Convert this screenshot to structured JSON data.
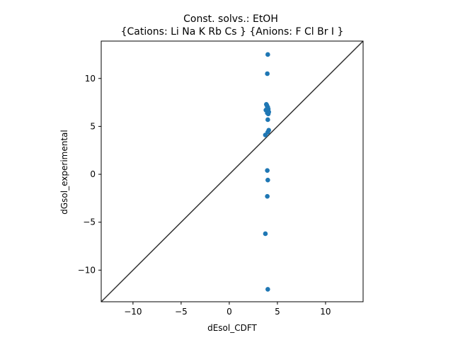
{
  "chart_data": {
    "type": "scatter",
    "title": "Const. solvs.: EtOH",
    "subtitle": "{Cations: Li Na K Rb Cs } {Anions: F Cl Br I }",
    "xlabel": "dEsol_CDFT",
    "ylabel": "dGsol_experimental",
    "xlim": [
      -13.3,
      13.9
    ],
    "ylim": [
      -13.3,
      13.9
    ],
    "xticks": [
      -10,
      -5,
      0,
      5,
      10
    ],
    "yticks": [
      -10,
      -5,
      0,
      5,
      10
    ],
    "grid": false,
    "legend": "none",
    "reference_line": "y = x",
    "marker_color": "#1f77b4",
    "line_color": "#333333",
    "series": [
      {
        "x": [
          4.0,
          3.95,
          3.85,
          3.9,
          4.0,
          3.95,
          4.05,
          3.8,
          4.1,
          3.95,
          4.05,
          4.0,
          3.75,
          4.1,
          4.0,
          3.95,
          4.0,
          3.95,
          3.75,
          4.0
        ],
        "y": [
          12.5,
          10.5,
          7.3,
          7.2,
          7.0,
          6.9,
          6.8,
          6.7,
          6.5,
          6.4,
          6.3,
          5.7,
          4.1,
          4.6,
          4.4,
          0.4,
          -0.6,
          -2.3,
          -6.2,
          -12.0
        ]
      }
    ]
  }
}
